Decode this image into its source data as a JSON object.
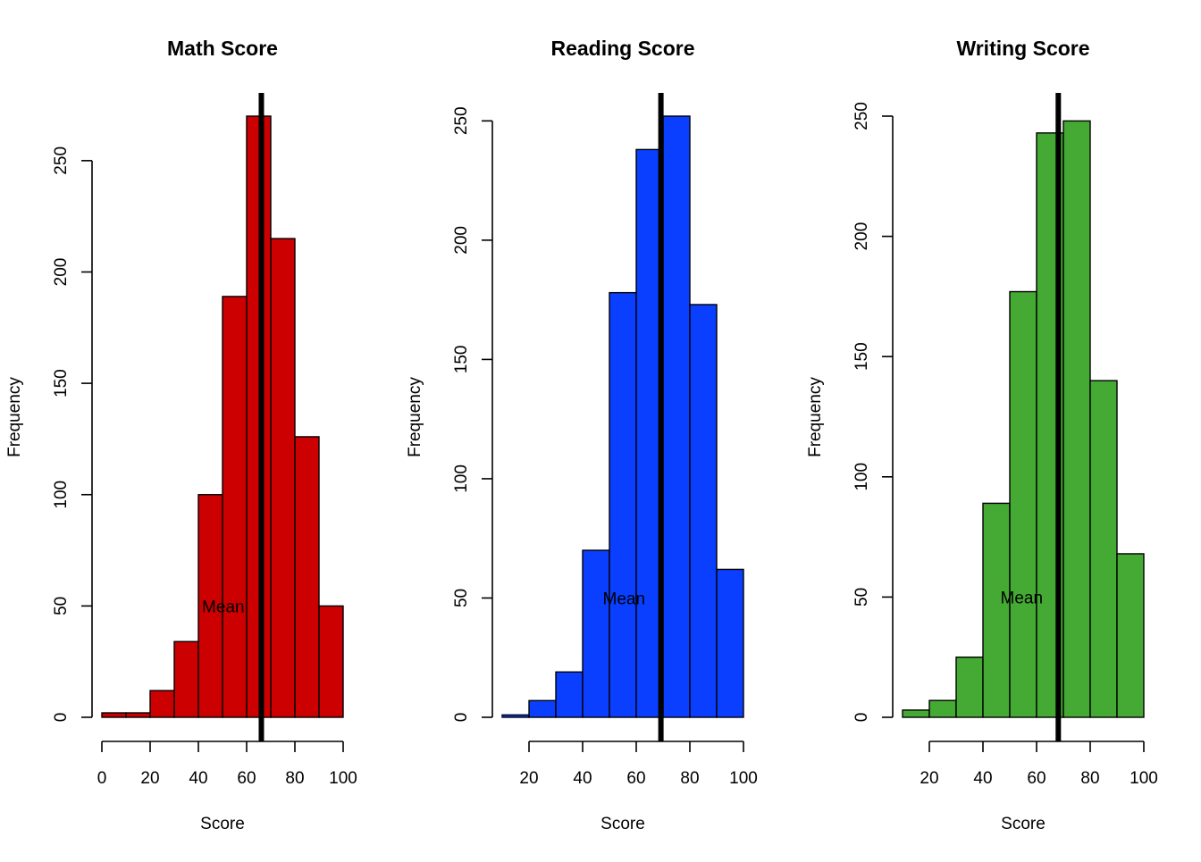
{
  "chart_data": [
    {
      "type": "bar",
      "title": "Math Score",
      "xlabel": "Score",
      "ylabel": "Frequency",
      "color": "#CC0000",
      "bins": [
        {
          "from": 0,
          "to": 10,
          "count": 2
        },
        {
          "from": 10,
          "to": 20,
          "count": 2
        },
        {
          "from": 20,
          "to": 30,
          "count": 12
        },
        {
          "from": 30,
          "to": 40,
          "count": 34
        },
        {
          "from": 40,
          "to": 50,
          "count": 100
        },
        {
          "from": 50,
          "to": 60,
          "count": 189
        },
        {
          "from": 60,
          "to": 70,
          "count": 270
        },
        {
          "from": 70,
          "to": 80,
          "count": 215
        },
        {
          "from": 80,
          "to": 90,
          "count": 126
        },
        {
          "from": 90,
          "to": 100,
          "count": 50
        }
      ],
      "mean": 66.1,
      "annotation": {
        "text": "Mean",
        "x": 41.5,
        "y": 50
      },
      "xlim": [
        0,
        100
      ],
      "ylim": [
        0,
        270
      ],
      "xticks": [
        0,
        20,
        40,
        60,
        80,
        100
      ],
      "yticks": [
        0,
        50,
        100,
        150,
        200,
        250
      ]
    },
    {
      "type": "bar",
      "title": "Reading Score",
      "xlabel": "Score",
      "ylabel": "Frequency",
      "color": "#0A3FFF",
      "bins": [
        {
          "from": 10,
          "to": 20,
          "count": 1
        },
        {
          "from": 20,
          "to": 30,
          "count": 7
        },
        {
          "from": 30,
          "to": 40,
          "count": 19
        },
        {
          "from": 40,
          "to": 50,
          "count": 70
        },
        {
          "from": 50,
          "to": 60,
          "count": 178
        },
        {
          "from": 60,
          "to": 70,
          "count": 238
        },
        {
          "from": 70,
          "to": 80,
          "count": 252
        },
        {
          "from": 80,
          "to": 90,
          "count": 173
        },
        {
          "from": 90,
          "to": 100,
          "count": 62
        }
      ],
      "mean": 69.2,
      "annotation": {
        "text": "Mean",
        "x": 47.5,
        "y": 50
      },
      "xlim": [
        10,
        100
      ],
      "ylim": [
        0,
        252
      ],
      "xticks": [
        20,
        40,
        60,
        80,
        100
      ],
      "yticks": [
        0,
        50,
        100,
        150,
        200,
        250
      ]
    },
    {
      "type": "bar",
      "title": "Writing Score",
      "xlabel": "Score",
      "ylabel": "Frequency",
      "color": "#44AA33",
      "bins": [
        {
          "from": 10,
          "to": 20,
          "count": 3
        },
        {
          "from": 20,
          "to": 30,
          "count": 7
        },
        {
          "from": 30,
          "to": 40,
          "count": 25
        },
        {
          "from": 40,
          "to": 50,
          "count": 89
        },
        {
          "from": 50,
          "to": 60,
          "count": 177
        },
        {
          "from": 60,
          "to": 70,
          "count": 243
        },
        {
          "from": 70,
          "to": 80,
          "count": 248
        },
        {
          "from": 80,
          "to": 90,
          "count": 140
        },
        {
          "from": 90,
          "to": 100,
          "count": 68
        }
      ],
      "mean": 68.1,
      "annotation": {
        "text": "Mean",
        "x": 46.5,
        "y": 50
      },
      "xlim": [
        10,
        100
      ],
      "ylim": [
        0,
        250
      ],
      "xticks": [
        20,
        40,
        60,
        80,
        100
      ],
      "yticks": [
        0,
        50,
        100,
        150,
        200,
        250
      ]
    }
  ]
}
